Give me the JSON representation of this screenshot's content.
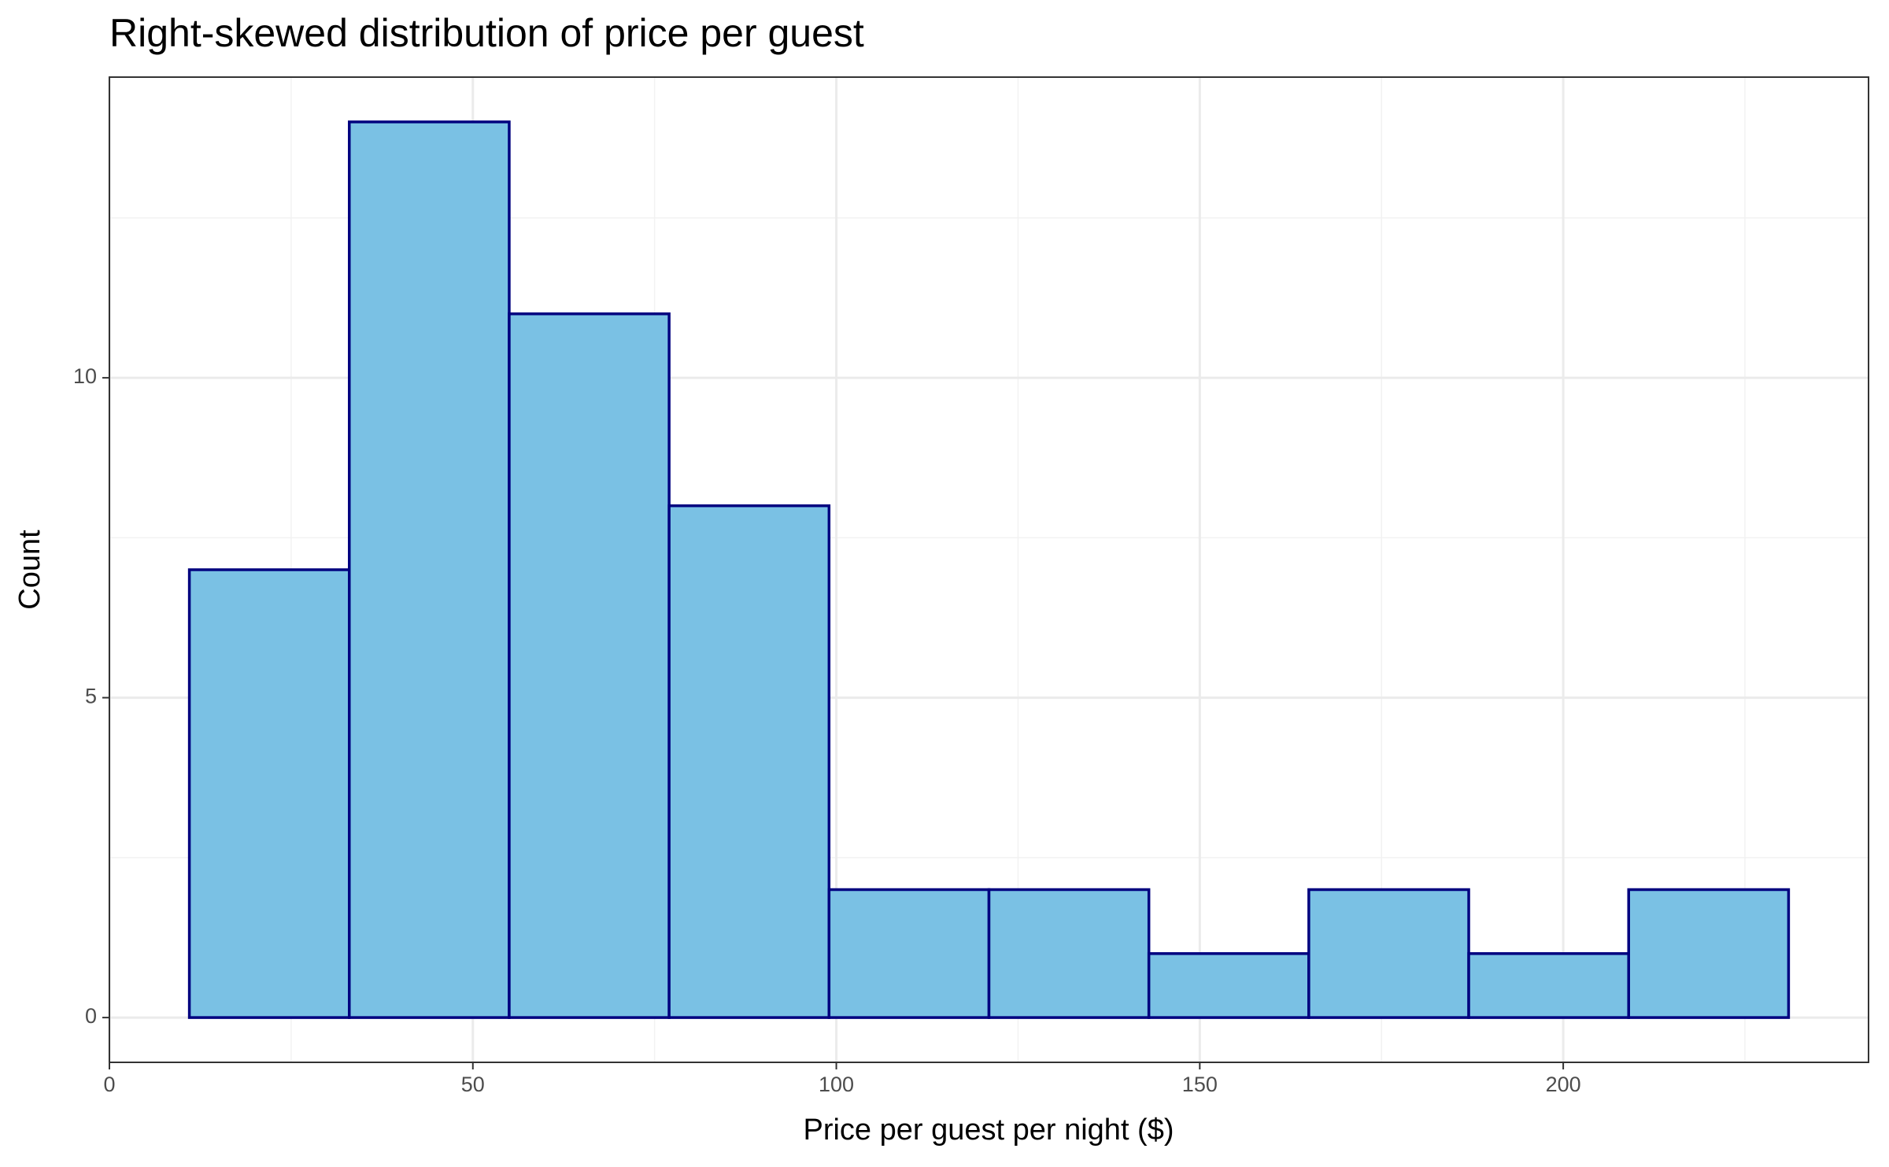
{
  "chart_data": {
    "type": "histogram",
    "title": "Right-skewed distribution of price per guest",
    "x_label": "Price per guest per night ($)",
    "y_label": "Count",
    "bins": [
      11,
      33,
      55,
      77,
      99,
      121,
      143,
      165,
      187,
      209,
      231
    ],
    "values": [
      7,
      14,
      11,
      8,
      2,
      2,
      1,
      2,
      1,
      2
    ],
    "color": "#7AC1E4",
    "edge_color": "#00007F",
    "xlim": [
      0,
      242
    ],
    "ylim": [
      -0.7,
      14.7
    ],
    "xticks": [
      0,
      50,
      100,
      150,
      200
    ],
    "yticks": [
      0,
      5,
      10
    ],
    "x_minor_grid": [
      25,
      75,
      125,
      175,
      225
    ],
    "y_minor_grid": [
      2.5,
      7.5,
      12.5
    ],
    "grid": true
  }
}
